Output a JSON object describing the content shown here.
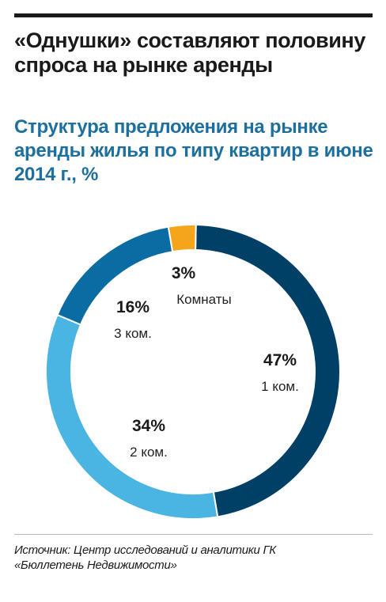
{
  "title": "«Однушки» составляют половину спроса на рынке аренды",
  "subtitle": "Структура предложения на рынке аренды жилья по типу квартир в июне 2014 г., %",
  "chart_data": {
    "type": "pie",
    "style": "donut",
    "unit": "%",
    "slices": [
      {
        "label": "1 ком.",
        "value": 47,
        "value_text": "47%",
        "color": "#003f66"
      },
      {
        "label": "2 ком.",
        "value": 34,
        "value_text": "34%",
        "color": "#4ab4e3"
      },
      {
        "label": "3 ком.",
        "value": 16,
        "value_text": "16%",
        "color": "#0b6ba3"
      },
      {
        "label": "Комнаты",
        "value": 3,
        "value_text": "3%",
        "color": "#f4a51c"
      }
    ]
  },
  "source": "Источник: Центр исследований и аналитики ГК «Бюллетень Недвижимости»"
}
